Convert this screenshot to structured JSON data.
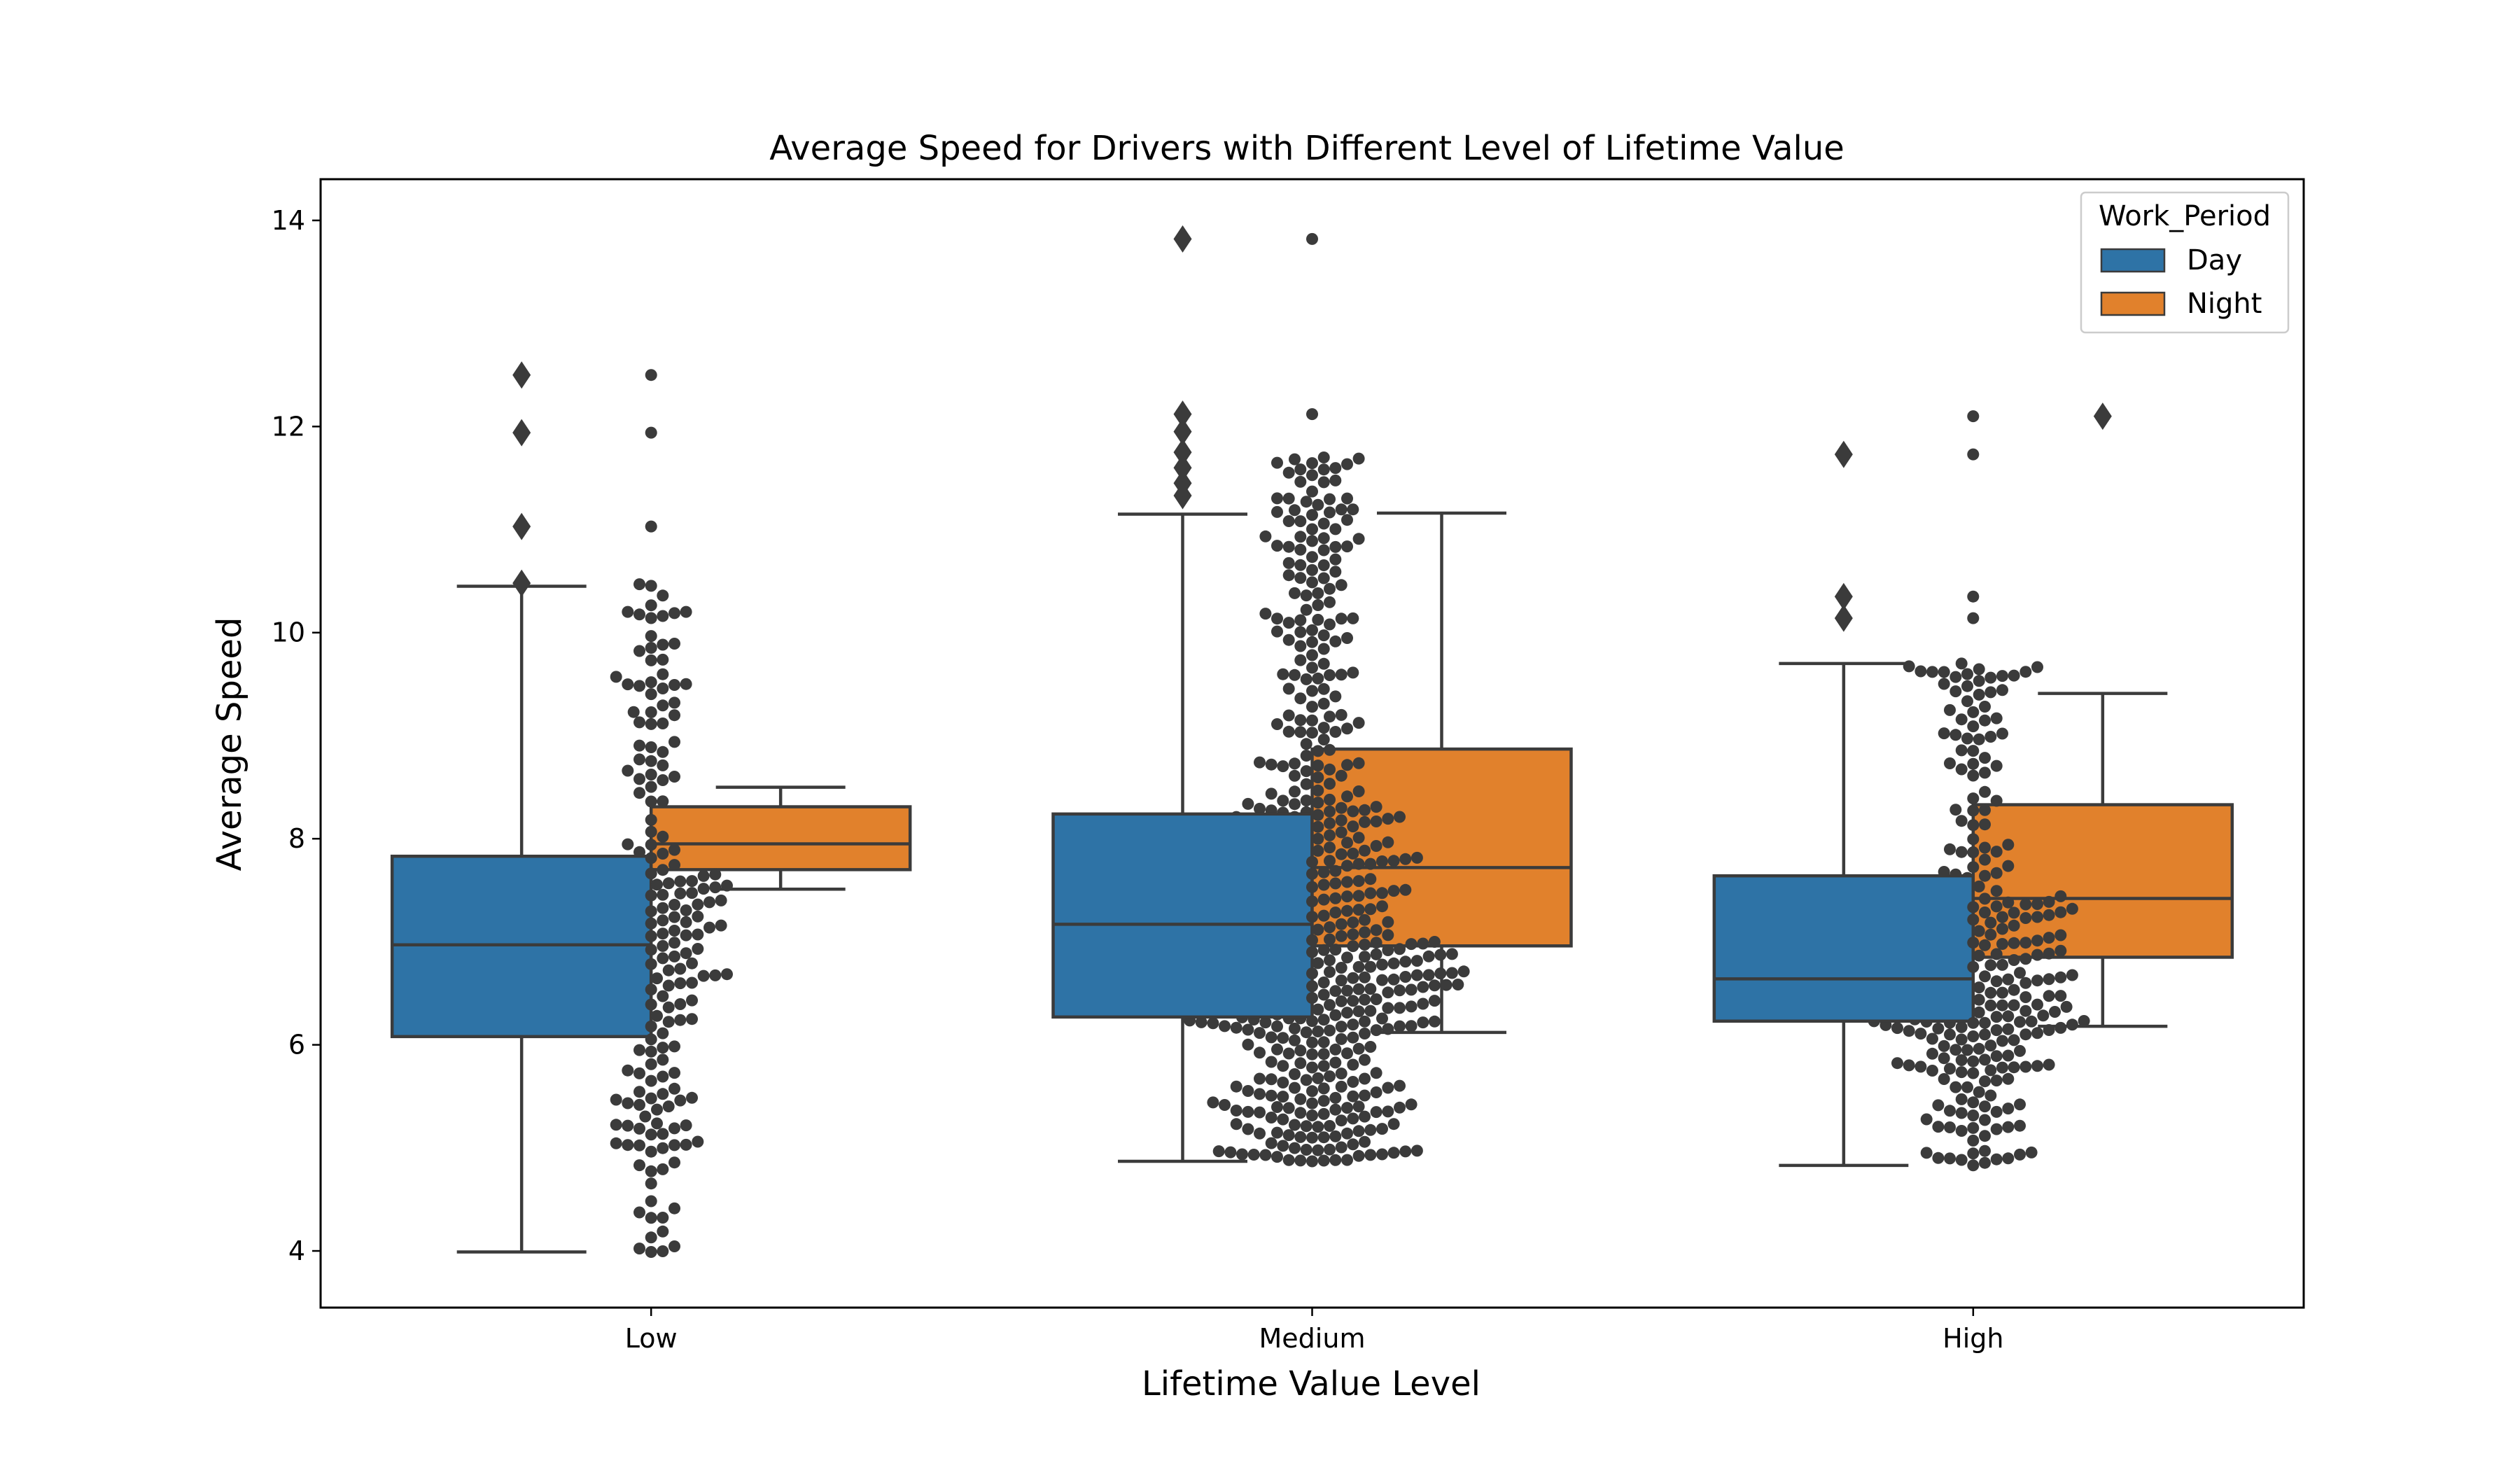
{
  "chart_data": {
    "type": "box",
    "title": "Average Speed for Drivers with Different Level of Lifetime Value",
    "xlabel": "Lifetime Value Level",
    "ylabel": "Average Speed",
    "categories": [
      "Low",
      "Medium",
      "High"
    ],
    "ylim": [
      3.45,
      14.4
    ],
    "yticks": [
      4,
      6,
      8,
      10,
      12,
      14
    ],
    "ytick_labels": [
      "4",
      "6",
      "8",
      "10",
      "12",
      "14"
    ],
    "grid": false,
    "legend": {
      "title": "Work_Period",
      "placement": "top-right"
    },
    "series": [
      {
        "name": "Day",
        "color": "#2e73a6",
        "boxes": [
          {
            "category": "Low",
            "whisker_low": 3.99,
            "q1": 6.08,
            "median": 6.97,
            "q3": 7.83,
            "whisker_high": 10.45,
            "outliers": [
              10.48,
              11.03,
              11.94,
              12.5
            ]
          },
          {
            "category": "Medium",
            "whisker_low": 4.87,
            "q1": 6.27,
            "median": 7.17,
            "q3": 8.24,
            "whisker_high": 11.15,
            "outliers": [
              11.33,
              11.45,
              11.6,
              11.75,
              11.95,
              12.12,
              13.82
            ]
          },
          {
            "category": "High",
            "whisker_low": 4.83,
            "q1": 6.23,
            "median": 6.64,
            "q3": 7.64,
            "whisker_high": 9.7,
            "outliers": [
              10.14,
              10.35,
              11.73
            ]
          }
        ]
      },
      {
        "name": "Night",
        "color": "#e1812c",
        "boxes": [
          {
            "category": "Low",
            "whisker_low": 7.51,
            "q1": 7.7,
            "median": 7.95,
            "q3": 8.31,
            "whisker_high": 8.5,
            "outliers": []
          },
          {
            "category": "Medium",
            "whisker_low": 6.12,
            "q1": 6.96,
            "median": 7.72,
            "q3": 8.87,
            "whisker_high": 11.16,
            "outliers": []
          },
          {
            "category": "High",
            "whisker_low": 6.18,
            "q1": 6.85,
            "median": 7.42,
            "q3": 8.33,
            "whisker_high": 9.41,
            "outliers": [
              12.1
            ]
          }
        ]
      }
    ],
    "swarm": {
      "color": "#3b3b3b",
      "groups": [
        {
          "category": "Low",
          "count": 230,
          "min": 3.99,
          "q1": 6.05,
          "median": 6.95,
          "q3": 7.9,
          "max": 10.47,
          "outliers": [
            11.03,
            11.94,
            12.5
          ]
        },
        {
          "category": "Medium",
          "count": 560,
          "min": 4.87,
          "q1": 6.2,
          "median": 7.15,
          "q3": 8.3,
          "max": 11.7,
          "outliers": [
            12.12,
            13.82
          ]
        },
        {
          "category": "High",
          "count": 300,
          "min": 4.83,
          "q1": 6.1,
          "median": 6.75,
          "q3": 7.55,
          "max": 9.7,
          "outliers": [
            10.14,
            10.35,
            11.73,
            12.1
          ]
        }
      ]
    }
  }
}
